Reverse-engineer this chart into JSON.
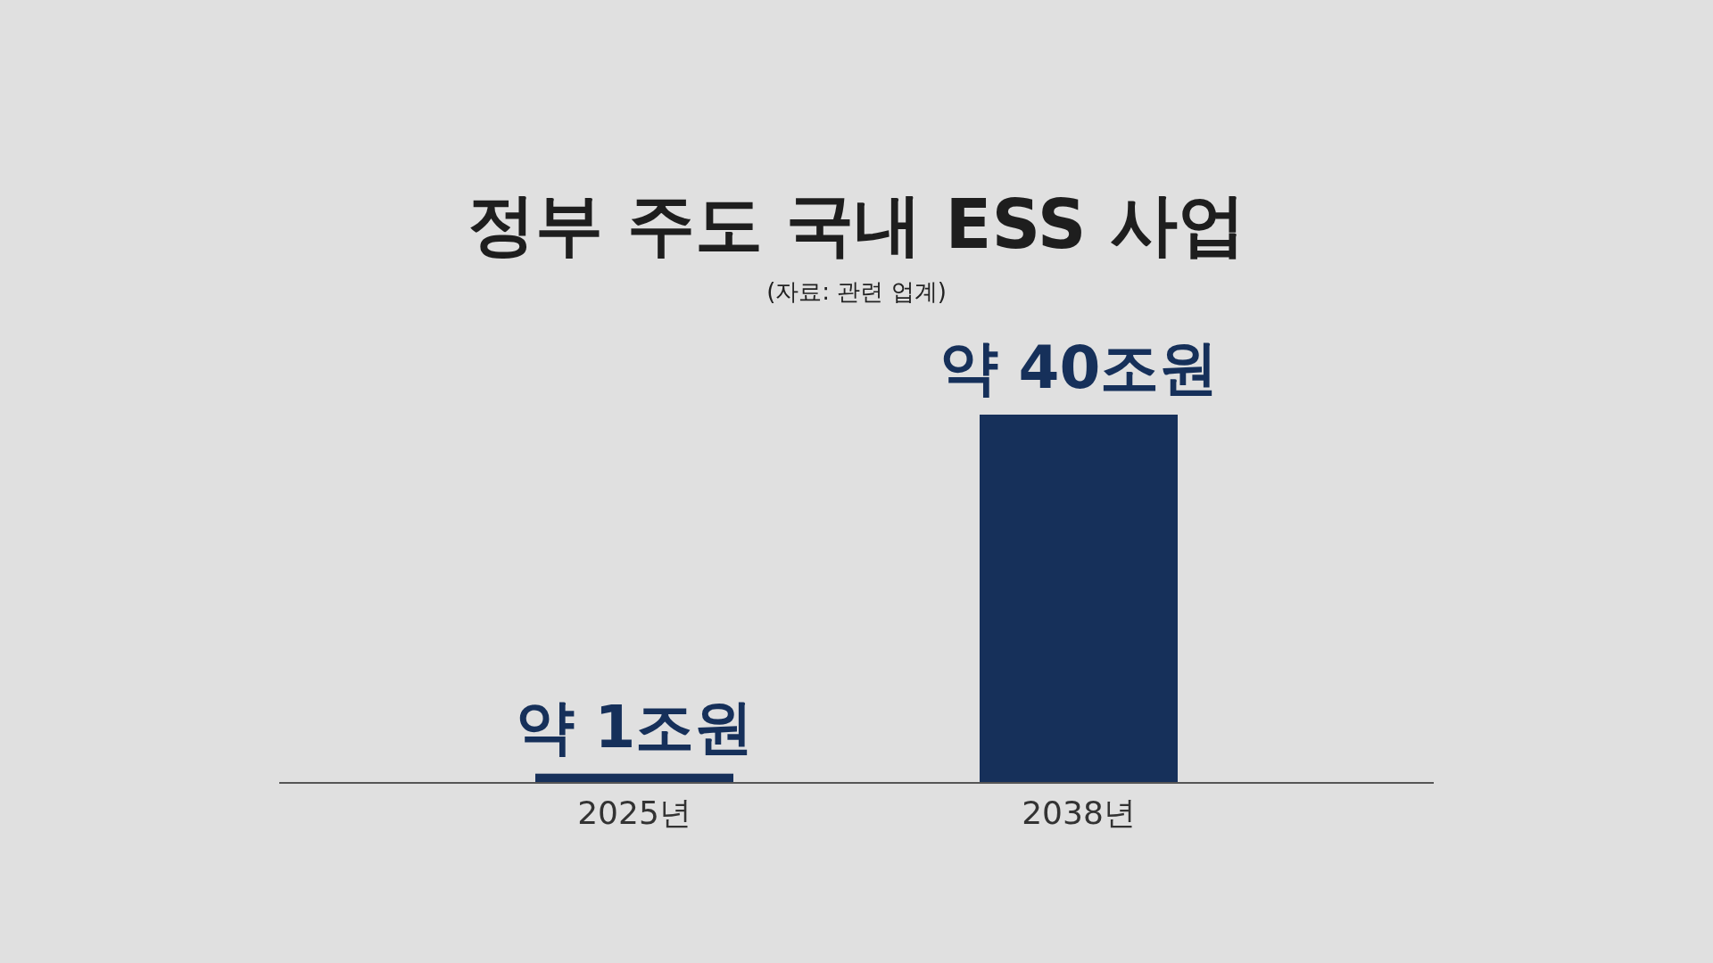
{
  "chart_data": {
    "type": "bar",
    "title": "정부 주도 국내 ESS 사업",
    "subtitle": "(자료: 관련 업계)",
    "categories": [
      "2025년",
      "2038년"
    ],
    "values": [
      1,
      40
    ],
    "value_labels": [
      "약 1조원",
      "약 40조원"
    ],
    "color": "#16305a"
  }
}
